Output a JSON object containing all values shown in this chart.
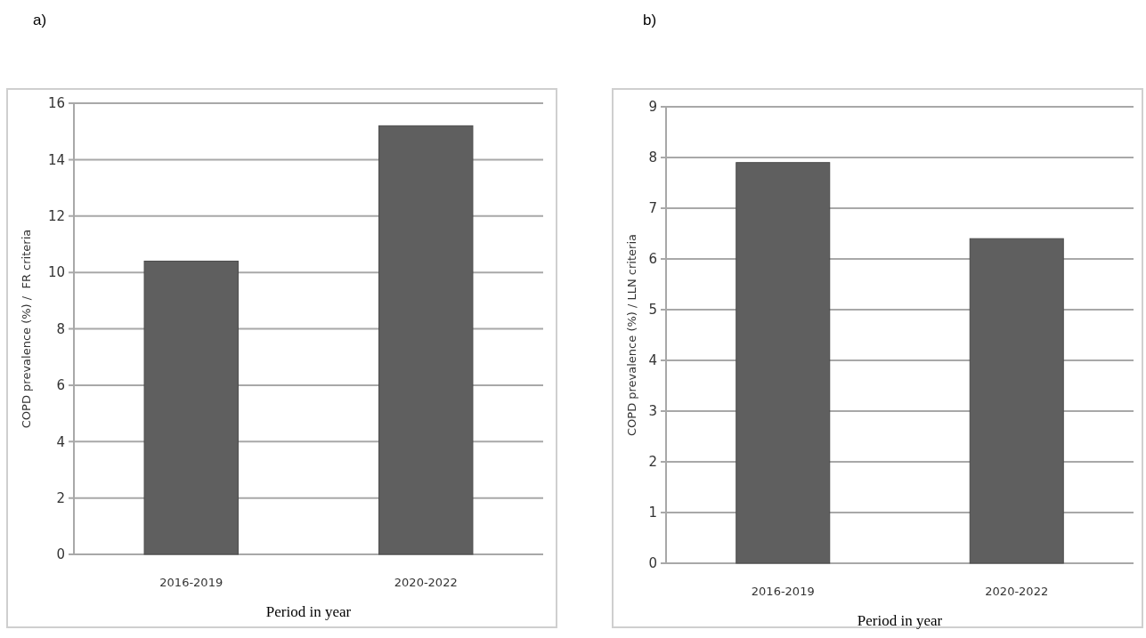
{
  "chart_data": [
    {
      "type": "bar",
      "title": "a)",
      "xlabel": "Period in year",
      "ylabel": "COPD prevalence (%) /  FR criteria",
      "categories": [
        "2016-2019",
        "2020-2022"
      ],
      "values": [
        10.4,
        15.2
      ],
      "color": "#5f5f5f",
      "ylim": [
        0,
        16
      ],
      "yticks": [
        0,
        2,
        4,
        6,
        8,
        10,
        12,
        14,
        16
      ],
      "grid": "y"
    },
    {
      "type": "bar",
      "title": "b)",
      "xlabel": "Period in year",
      "ylabel": "COPD prevalence (%) / LLN criteria",
      "categories": [
        "2016-2019",
        "2020-2022"
      ],
      "values": [
        7.9,
        6.4
      ],
      "color": "#5f5f5f",
      "ylim": [
        0,
        9
      ],
      "yticks": [
        0,
        1,
        2,
        3,
        4,
        5,
        6,
        7,
        8,
        9
      ],
      "grid": "y"
    }
  ]
}
